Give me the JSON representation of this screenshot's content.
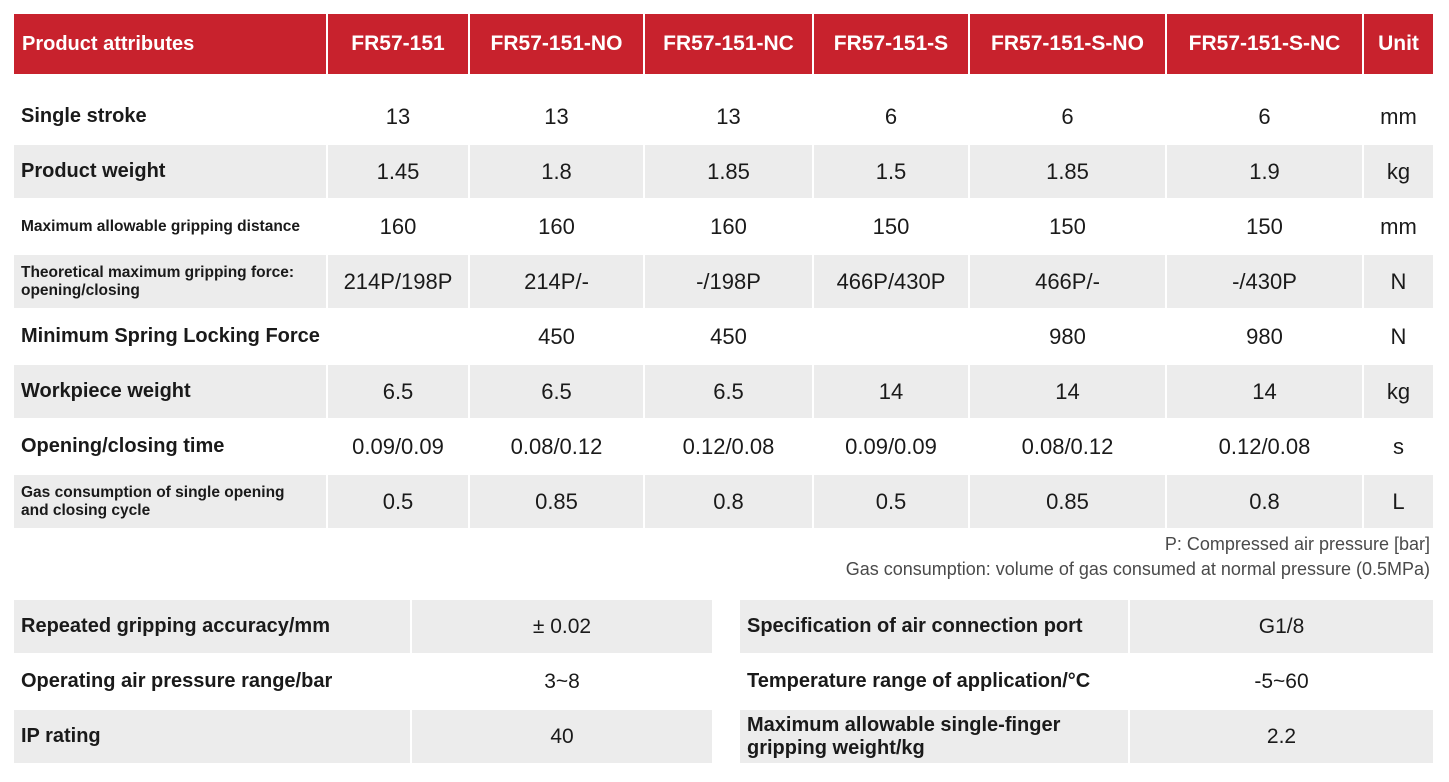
{
  "main_table": {
    "headers": [
      "Product attributes",
      "FR57-151",
      "FR57-151-NO",
      "FR57-151-NC",
      "FR57-151-S",
      "FR57-151-S-NO",
      "FR57-151-S-NC",
      "Unit"
    ],
    "rows": [
      {
        "attr": "Single stroke",
        "values": [
          "13",
          "13",
          "13",
          "6",
          "6",
          "6"
        ],
        "unit": "mm"
      },
      {
        "attr": "Product weight",
        "values": [
          "1.45",
          "1.8",
          "1.85",
          "1.5",
          "1.85",
          "1.9"
        ],
        "unit": "kg"
      },
      {
        "attr": "Maximum allowable gripping distance",
        "values": [
          "160",
          "160",
          "160",
          "150",
          "150",
          "150"
        ],
        "unit": "mm"
      },
      {
        "attr_line1": "Theoretical maximum gripping force:",
        "attr_line2": "opening/closing",
        "values": [
          "214P/198P",
          "214P/-",
          "-/198P",
          "466P/430P",
          "466P/-",
          "-/430P"
        ],
        "unit": "N"
      },
      {
        "attr": "Minimum Spring Locking Force",
        "values": [
          "",
          "450",
          "450",
          "",
          "980",
          "980"
        ],
        "unit": "N"
      },
      {
        "attr": "Workpiece weight",
        "values": [
          "6.5",
          "6.5",
          "6.5",
          "14",
          "14",
          "14"
        ],
        "unit": "kg"
      },
      {
        "attr": "Opening/closing time",
        "values": [
          "0.09/0.09",
          "0.08/0.12",
          "0.12/0.08",
          "0.09/0.09",
          "0.08/0.12",
          "0.12/0.08"
        ],
        "unit": "s"
      },
      {
        "attr_line1": "Gas consumption of single opening",
        "attr_line2": "and closing cycle",
        "values": [
          "0.5",
          "0.85",
          "0.8",
          "0.5",
          "0.85",
          "0.8"
        ],
        "unit": "L"
      }
    ]
  },
  "notes": {
    "line1": "P: Compressed air pressure [bar]",
    "line2": "Gas consumption: volume of gas consumed at normal pressure (0.5MPa)"
  },
  "left_params": [
    {
      "key": "Repeated gripping accuracy/mm",
      "value": "± 0.02"
    },
    {
      "key": "Operating air pressure range/bar",
      "value": "3~8"
    },
    {
      "key": "IP rating",
      "value": "40"
    }
  ],
  "right_params": [
    {
      "key": "Specification of air connection port",
      "value": "G1/8"
    },
    {
      "key": "Temperature range of application/°C",
      "value": "-5~60"
    },
    {
      "key_line1": "Maximum allowable single-finger",
      "key_line2": "gripping weight/kg",
      "value": "2.2"
    }
  ]
}
